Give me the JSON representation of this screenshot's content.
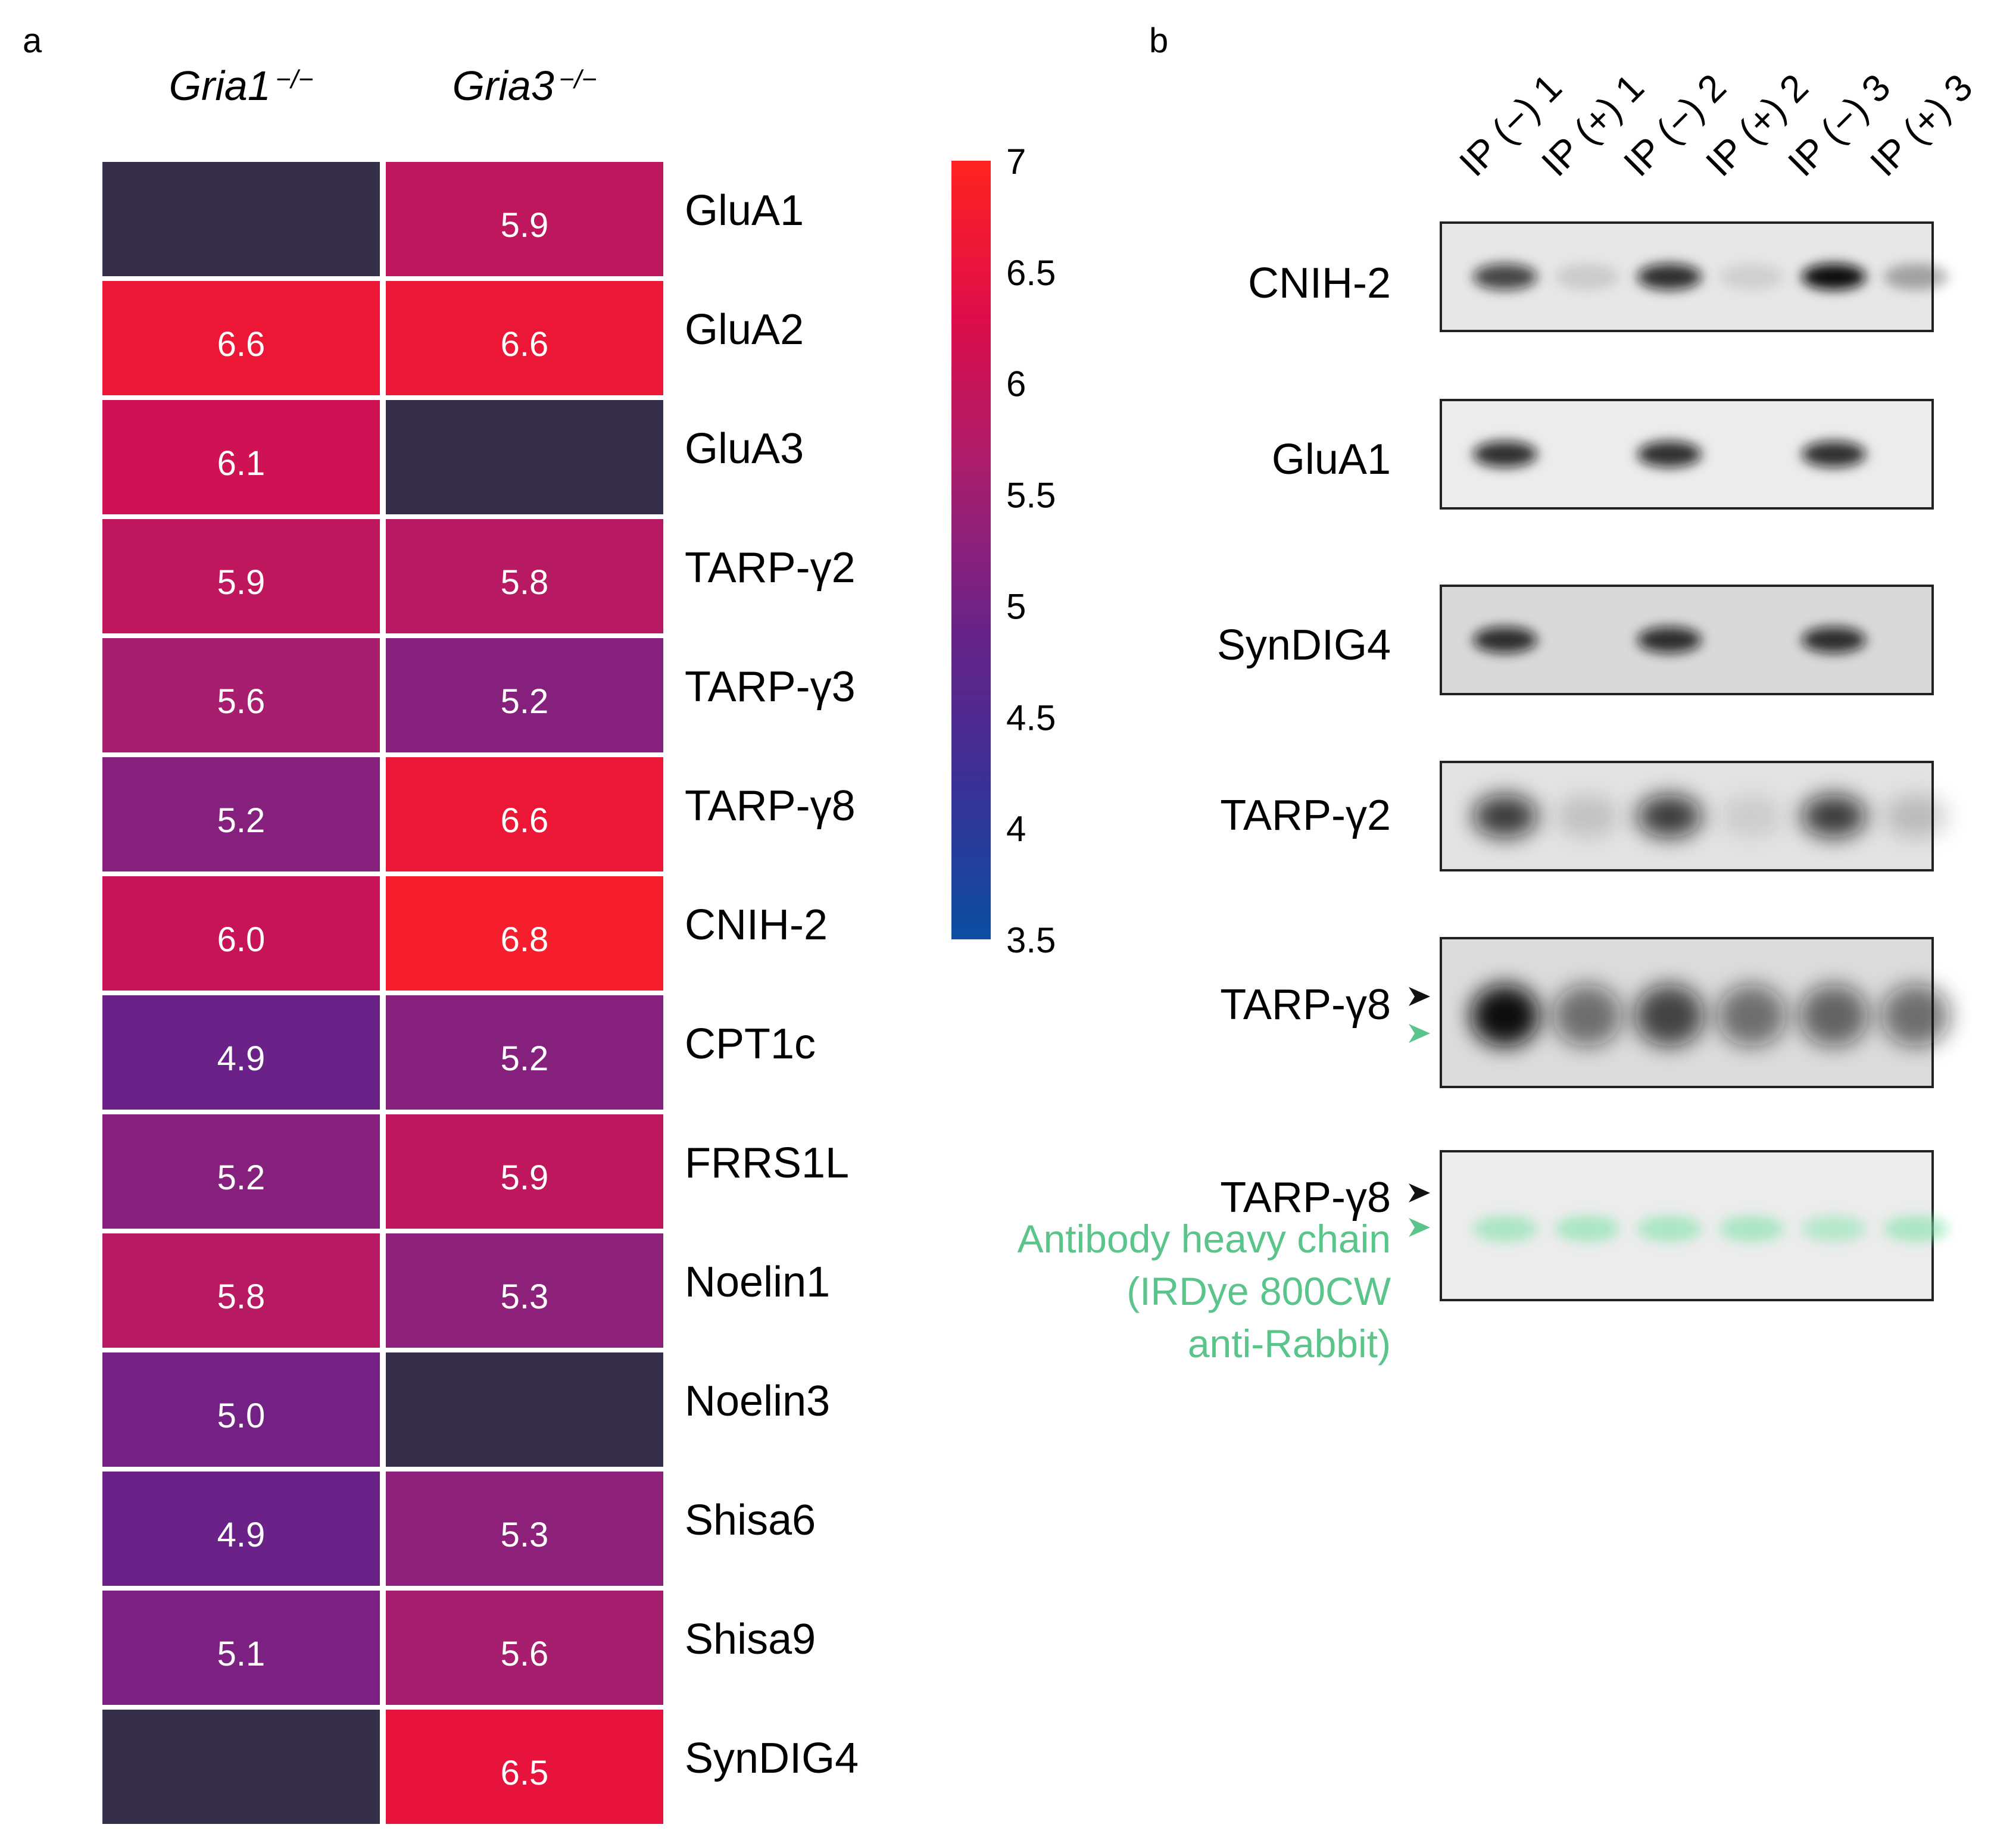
{
  "panels": {
    "a": "a",
    "b": "b"
  },
  "chart_data": {
    "type": "heatmap",
    "columns": [
      {
        "name": "Gria1",
        "superscript": "−/−"
      },
      {
        "name": "Gria3",
        "superscript": "−/−"
      }
    ],
    "rows": [
      "GluA1",
      "GluA2",
      "GluA3",
      "TARP-γ2",
      "TARP-γ3",
      "TARP-γ8",
      "CNIH-2",
      "CPT1c",
      "FRRS1L",
      "Noelin1",
      "Noelin3",
      "Shisa6",
      "Shisa9",
      "SynDIG4"
    ],
    "values": [
      [
        null,
        5.9
      ],
      [
        6.6,
        6.6
      ],
      [
        6.1,
        null
      ],
      [
        5.9,
        5.8
      ],
      [
        5.6,
        5.2
      ],
      [
        5.2,
        6.6
      ],
      [
        6.0,
        6.8
      ],
      [
        4.9,
        5.2
      ],
      [
        5.2,
        5.9
      ],
      [
        5.8,
        5.3
      ],
      [
        5.0,
        null
      ],
      [
        4.9,
        5.3
      ],
      [
        5.1,
        5.6
      ],
      [
        null,
        6.5
      ]
    ],
    "value_labels": [
      [
        "",
        "5.9"
      ],
      [
        "6.6",
        "6.6"
      ],
      [
        "6.1",
        ""
      ],
      [
        "5.9",
        "5.8"
      ],
      [
        "5.6",
        "5.2"
      ],
      [
        "5.2",
        "6.6"
      ],
      [
        "6.0",
        "6.8"
      ],
      [
        "4.9",
        "5.2"
      ],
      [
        "5.2",
        "5.9"
      ],
      [
        "5.8",
        "5.3"
      ],
      [
        "5.0",
        ""
      ],
      [
        "4.9",
        "5.3"
      ],
      [
        "5.1",
        "5.6"
      ],
      [
        "",
        "6.5"
      ]
    ],
    "missing_color": "#352f4a",
    "colorbar": {
      "range": [
        3.5,
        7
      ],
      "ticks": [
        "7",
        "6.5",
        "6",
        "5.5",
        "5",
        "4.5",
        "4",
        "3.5"
      ],
      "colors": [
        "#0b4ea2",
        "#3a3196",
        "#6a2288",
        "#a81e6e",
        "#de0d49",
        "#ff2320"
      ]
    }
  },
  "blot": {
    "lanes": [
      "IP (−) 1",
      "IP (+) 1",
      "IP (−) 2",
      "IP (+) 2",
      "IP (−) 3",
      "IP (+) 3"
    ],
    "panels": [
      {
        "label": "CNIH-2",
        "bands": [
          0.75,
          0.12,
          0.85,
          0.1,
          1.0,
          0.3
        ]
      },
      {
        "label": "GluA1",
        "bands": [
          0.85,
          0,
          0.85,
          0,
          0.85,
          0
        ]
      },
      {
        "label": "SynDIG4",
        "bands": [
          0.85,
          0,
          0.85,
          0,
          0.85,
          0
        ]
      },
      {
        "label": "TARP-γ2",
        "bands": [
          0.8,
          0.15,
          0.8,
          0.1,
          0.8,
          0.18
        ]
      },
      {
        "label": "TARP-γ8",
        "bands": [
          1.0,
          0.55,
          0.75,
          0.55,
          0.6,
          0.55
        ]
      },
      {
        "label": "TARP-γ8",
        "bands": [
          0.6,
          0.6,
          0.6,
          0.6,
          0.5,
          0.6
        ]
      }
    ],
    "green_note": [
      "Antibody heavy chain",
      "(IRDye 800CW",
      "anti-Rabbit)"
    ],
    "arrow_colors": {
      "black": "#111111",
      "green": "#5bc48b"
    }
  }
}
